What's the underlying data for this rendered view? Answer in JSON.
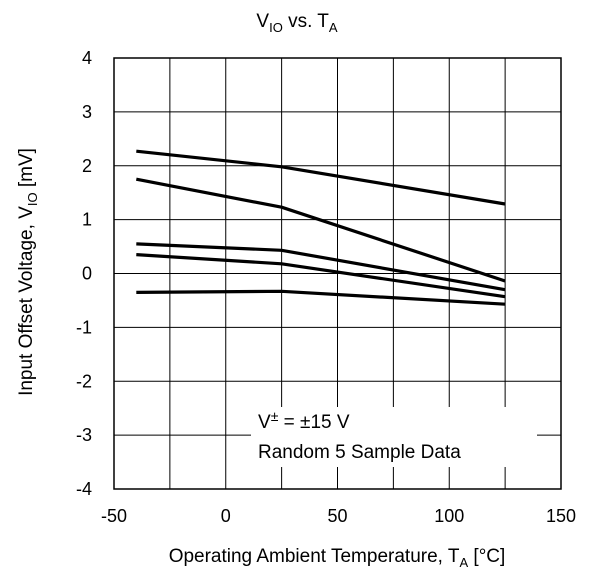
{
  "chart_data": {
    "type": "line",
    "title": {
      "main": "V",
      "sub": "IO",
      "mid": " vs. T",
      "sub2": "A"
    },
    "xlabel": {
      "main": "Operating Ambient Temperature, T",
      "sub": "A",
      "tail": " [°C]"
    },
    "ylabel": {
      "main": "Input Offset Voltage, V",
      "sub": "IO",
      "tail": " [mV]"
    },
    "xlim": [
      -50,
      150
    ],
    "ylim": [
      -4,
      4
    ],
    "x_ticks": [
      "-50",
      "0",
      "50",
      "100",
      "150"
    ],
    "y_ticks": [
      "4",
      "3",
      "2",
      "1",
      "0",
      "-1",
      "-2",
      "-3",
      "-4"
    ],
    "grid": true,
    "line_color": "#000000",
    "annotation": {
      "line1_a": "V",
      "line1_sup": "±",
      "line1_b": " = ±15 V",
      "line2": "Random 5 Sample Data"
    },
    "series": [
      {
        "x": [
          -40,
          25,
          125
        ],
        "y": [
          2.27,
          1.98,
          1.29
        ]
      },
      {
        "x": [
          -40,
          25,
          125
        ],
        "y": [
          1.75,
          1.23,
          -0.14
        ]
      },
      {
        "x": [
          -40,
          25,
          125
        ],
        "y": [
          0.55,
          0.43,
          -0.3
        ]
      },
      {
        "x": [
          -40,
          25,
          125
        ],
        "y": [
          0.35,
          0.18,
          -0.43
        ]
      },
      {
        "x": [
          -40,
          25,
          125
        ],
        "y": [
          -0.35,
          -0.33,
          -0.57
        ]
      }
    ]
  }
}
